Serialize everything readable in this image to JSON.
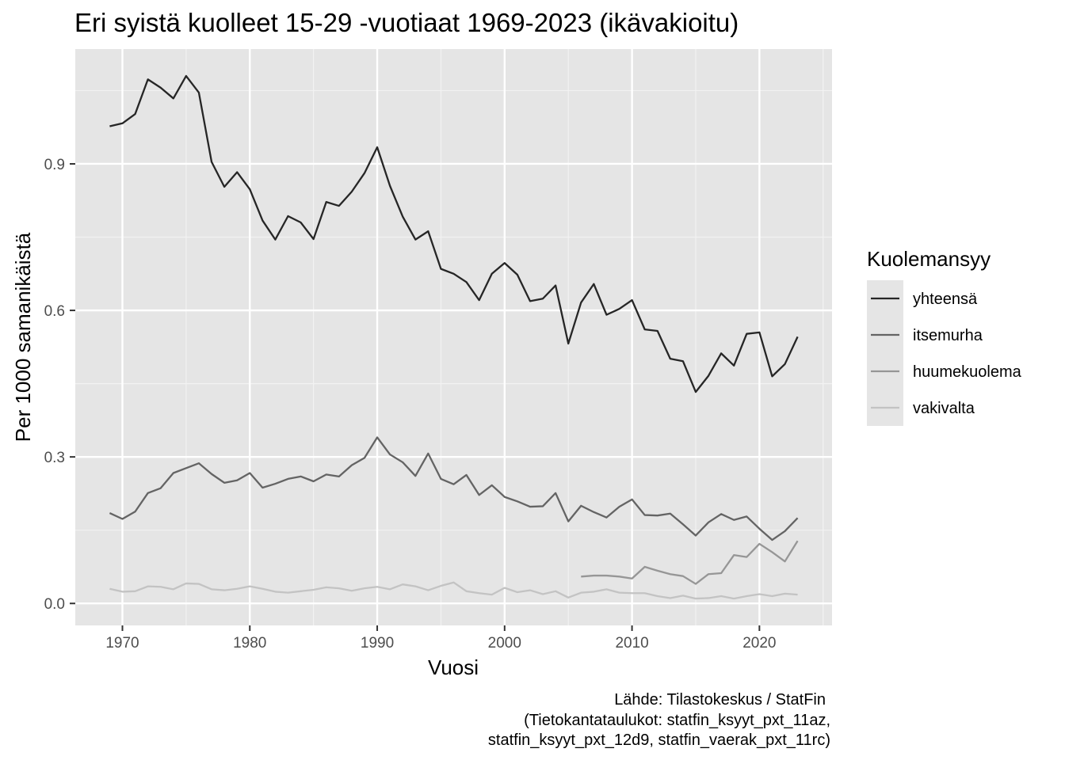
{
  "chart_data": {
    "type": "line",
    "title": "Eri syistä kuolleet 15-29 -vuotiaat 1969-2023 (ikävakioitu)",
    "xlabel": "Vuosi",
    "ylabel": "Per 1000 samanikäistä",
    "xlim": [
      1966.3,
      2025.7
    ],
    "ylim": [
      -0.045,
      1.135
    ],
    "x_ticks": [
      1970,
      1980,
      1990,
      2000,
      2010,
      2020
    ],
    "x_tick_labels": [
      "1970",
      "1980",
      "1990",
      "2000",
      "2010",
      "2020"
    ],
    "y_ticks": [
      0.0,
      0.3,
      0.6,
      0.9
    ],
    "y_tick_labels": [
      "0.0",
      "0.3",
      "0.6",
      "0.9"
    ],
    "grid": true,
    "legend": {
      "title": "Kuolemansyy",
      "position": "right"
    },
    "caption": [
      "Lähde: Tilastokeskus / StatFin",
      "(Tietokantataulukot: statfin_ksyyt_pxt_11az,",
      "statfin_ksyyt_pxt_12d9, statfin_vaerak_pxt_11rc)"
    ],
    "colors": {
      "panel": "#e5e5e5",
      "yhteensa": "#262626",
      "itsemurha": "#646464",
      "huumekuolema": "#969696",
      "vakivalta": "#c3c3c3"
    },
    "series": [
      {
        "name": "yhteensä",
        "color": "#262626",
        "x": [
          1969,
          1970,
          1971,
          1972,
          1973,
          1974,
          1975,
          1976,
          1977,
          1978,
          1979,
          1980,
          1981,
          1982,
          1983,
          1984,
          1985,
          1986,
          1987,
          1988,
          1989,
          1990,
          1991,
          1992,
          1993,
          1994,
          1995,
          1996,
          1997,
          1998,
          1999,
          2000,
          2001,
          2002,
          2003,
          2004,
          2005,
          2006,
          2007,
          2008,
          2009,
          2010,
          2011,
          2012,
          2013,
          2014,
          2015,
          2016,
          2017,
          2018,
          2019,
          2020,
          2021,
          2022,
          2023
        ],
        "values": [
          0.977,
          0.983,
          1.002,
          1.073,
          1.056,
          1.034,
          1.08,
          1.046,
          0.904,
          0.853,
          0.883,
          0.848,
          0.784,
          0.745,
          0.793,
          0.78,
          0.746,
          0.822,
          0.814,
          0.843,
          0.881,
          0.934,
          0.855,
          0.792,
          0.745,
          0.762,
          0.685,
          0.675,
          0.658,
          0.621,
          0.675,
          0.697,
          0.673,
          0.619,
          0.624,
          0.651,
          0.532,
          0.616,
          0.654,
          0.591,
          0.603,
          0.621,
          0.561,
          0.558,
          0.501,
          0.496,
          0.433,
          0.466,
          0.512,
          0.487,
          0.552,
          0.555,
          0.465,
          0.49,
          0.546
        ]
      },
      {
        "name": "itsemurha",
        "color": "#646464",
        "x": [
          1969,
          1970,
          1971,
          1972,
          1973,
          1974,
          1975,
          1976,
          1977,
          1978,
          1979,
          1980,
          1981,
          1982,
          1983,
          1984,
          1985,
          1986,
          1987,
          1988,
          1989,
          1990,
          1991,
          1992,
          1993,
          1994,
          1995,
          1996,
          1997,
          1998,
          1999,
          2000,
          2001,
          2002,
          2003,
          2004,
          2005,
          2006,
          2007,
          2008,
          2009,
          2010,
          2011,
          2012,
          2013,
          2014,
          2015,
          2016,
          2017,
          2018,
          2019,
          2020,
          2021,
          2022,
          2023
        ],
        "values": [
          0.185,
          0.173,
          0.188,
          0.226,
          0.236,
          0.267,
          0.277,
          0.287,
          0.265,
          0.247,
          0.252,
          0.267,
          0.237,
          0.245,
          0.255,
          0.26,
          0.25,
          0.264,
          0.26,
          0.283,
          0.298,
          0.34,
          0.305,
          0.289,
          0.261,
          0.307,
          0.255,
          0.244,
          0.263,
          0.222,
          0.242,
          0.218,
          0.209,
          0.198,
          0.199,
          0.226,
          0.168,
          0.2,
          0.187,
          0.176,
          0.198,
          0.213,
          0.181,
          0.18,
          0.184,
          0.162,
          0.139,
          0.166,
          0.183,
          0.171,
          0.178,
          0.153,
          0.13,
          0.148,
          0.175
        ]
      },
      {
        "name": "huumekuolema",
        "color": "#969696",
        "x": [
          2006,
          2007,
          2008,
          2009,
          2010,
          2011,
          2012,
          2013,
          2014,
          2015,
          2016,
          2017,
          2018,
          2019,
          2020,
          2021,
          2022,
          2023
        ],
        "values": [
          0.055,
          0.057,
          0.057,
          0.055,
          0.051,
          0.075,
          0.067,
          0.06,
          0.056,
          0.04,
          0.06,
          0.062,
          0.099,
          0.095,
          0.122,
          0.105,
          0.086,
          0.128
        ]
      },
      {
        "name": "vakivalta",
        "color": "#c3c3c3",
        "x": [
          1969,
          1970,
          1971,
          1972,
          1973,
          1974,
          1975,
          1976,
          1977,
          1978,
          1979,
          1980,
          1981,
          1982,
          1983,
          1984,
          1985,
          1986,
          1987,
          1988,
          1989,
          1990,
          1991,
          1992,
          1993,
          1994,
          1995,
          1996,
          1997,
          1998,
          1999,
          2000,
          2001,
          2002,
          2003,
          2004,
          2005,
          2006,
          2007,
          2008,
          2009,
          2010,
          2011,
          2012,
          2013,
          2014,
          2015,
          2016,
          2017,
          2018,
          2019,
          2020,
          2021,
          2022,
          2023
        ],
        "values": [
          0.03,
          0.024,
          0.025,
          0.035,
          0.034,
          0.029,
          0.041,
          0.04,
          0.029,
          0.027,
          0.03,
          0.035,
          0.03,
          0.024,
          0.022,
          0.025,
          0.028,
          0.033,
          0.031,
          0.026,
          0.031,
          0.034,
          0.029,
          0.039,
          0.035,
          0.027,
          0.036,
          0.043,
          0.025,
          0.021,
          0.018,
          0.032,
          0.023,
          0.027,
          0.019,
          0.025,
          0.012,
          0.022,
          0.024,
          0.029,
          0.022,
          0.021,
          0.021,
          0.015,
          0.011,
          0.016,
          0.01,
          0.011,
          0.015,
          0.01,
          0.015,
          0.019,
          0.015,
          0.02,
          0.018
        ]
      }
    ]
  }
}
